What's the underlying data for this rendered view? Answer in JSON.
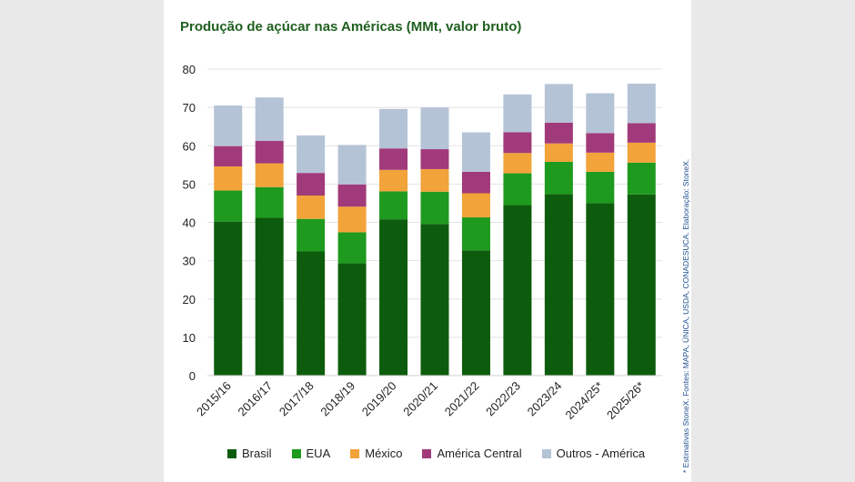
{
  "chart_data": {
    "type": "bar",
    "stacked": true,
    "title": "Produção de açúcar nas Américas (MMt, valor bruto)",
    "xlabel": "",
    "ylabel": "",
    "ylim": [
      0,
      80
    ],
    "yticks": [
      0,
      10,
      20,
      30,
      40,
      50,
      60,
      70,
      80
    ],
    "grid": true,
    "legend_position": "bottom",
    "categories": [
      "2015/16",
      "2016/17",
      "2017/18",
      "2018/19",
      "2019/20",
      "2020/21",
      "2021/22",
      "2022/23",
      "2023/24",
      "2024/25*",
      "2025/26*"
    ],
    "series": [
      {
        "name": "Brasil",
        "color": "#0d5c0d",
        "values": [
          40.2,
          41.2,
          32.4,
          29.3,
          40.8,
          39.6,
          32.7,
          44.5,
          47.4,
          45.0,
          47.3
        ]
      },
      {
        "name": "EUA",
        "color": "#1e9a1e",
        "values": [
          8.1,
          8.0,
          8.5,
          8.1,
          7.3,
          8.4,
          8.6,
          8.3,
          8.4,
          8.2,
          8.3
        ]
      },
      {
        "name": "México",
        "color": "#f2a33a",
        "values": [
          6.3,
          6.2,
          6.1,
          6.7,
          5.6,
          5.9,
          6.3,
          5.3,
          4.8,
          5.0,
          5.2
        ]
      },
      {
        "name": "América Central",
        "color": "#a13a7a",
        "values": [
          5.3,
          5.9,
          5.9,
          5.8,
          5.6,
          5.2,
          5.6,
          5.4,
          5.4,
          5.1,
          5.1
        ]
      },
      {
        "name": "Outros - América",
        "color": "#b5c3d6",
        "values": [
          10.6,
          11.3,
          9.8,
          10.3,
          10.3,
          10.9,
          10.3,
          9.9,
          10.1,
          10.4,
          10.3
        ]
      }
    ],
    "note": "* Estimativas StoneX. Fontes: MAPA, ÚNICA, USDA, CONADESUCA. Elaboração: StoneX."
  }
}
